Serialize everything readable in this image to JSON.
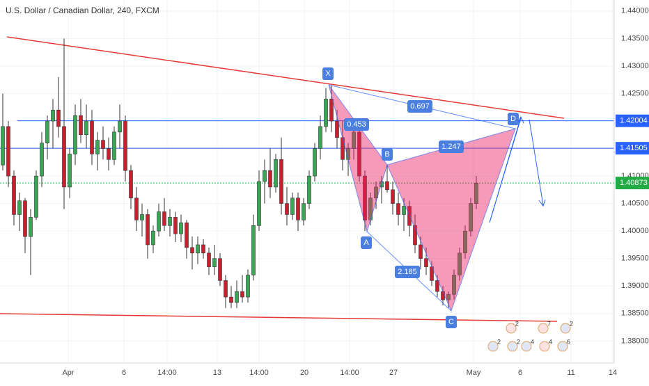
{
  "chart_data": {
    "type": "candlestick",
    "title": "U.S. Dollar / Canadian Dollar, 240, FXCM",
    "x_labels": [
      "Apr",
      "6",
      "14:00",
      "13",
      "14:00",
      "20",
      "14:00",
      "27",
      "May",
      "6",
      "11",
      "14"
    ],
    "ylim": [
      1.376,
      1.442
    ],
    "yticks": [
      {
        "value": 1.38,
        "label": "1.38000"
      },
      {
        "value": 1.385,
        "label": "1.38500"
      },
      {
        "value": 1.39,
        "label": "1.39000"
      },
      {
        "value": 1.395,
        "label": "1.39500"
      },
      {
        "value": 1.4,
        "label": "1.40000"
      },
      {
        "value": 1.405,
        "label": "1.40500"
      },
      {
        "value": 1.41,
        "label": "1.41000"
      },
      {
        "value": 1.415,
        "label": "1.41500"
      },
      {
        "value": 1.42,
        "label": "1.42000"
      },
      {
        "value": 1.425,
        "label": "1.42500"
      },
      {
        "value": 1.43,
        "label": "1.43000"
      },
      {
        "value": 1.435,
        "label": "1.43500"
      },
      {
        "value": 1.44,
        "label": "1.44000"
      }
    ],
    "price_lines": [
      {
        "value": 1.42004,
        "color": "#2962ff"
      },
      {
        "value": 1.41505,
        "color": "#2962ff"
      },
      {
        "value": 1.40873,
        "color": "#22ab45"
      }
    ],
    "up_color": "#3aa655",
    "down_color": "#c8202f",
    "pattern_points": [
      "X",
      "A",
      "B",
      "C",
      "D"
    ],
    "pattern_ratios": [
      "0.697",
      "0.453",
      "1.247",
      "2.185"
    ],
    "event_counts": [
      "2",
      "2",
      "2",
      "4",
      "4",
      "6",
      "2",
      "7"
    ],
    "ohlc": [
      [
        1.412,
        1.425,
        1.411,
        1.419
      ],
      [
        1.419,
        1.42,
        1.408,
        1.41
      ],
      [
        1.41,
        1.411,
        1.401,
        1.403
      ],
      [
        1.403,
        1.407,
        1.4,
        1.4055
      ],
      [
        1.4055,
        1.406,
        1.396,
        1.399
      ],
      [
        1.399,
        1.404,
        1.392,
        1.4025
      ],
      [
        1.4025,
        1.411,
        1.402,
        1.41
      ],
      [
        1.41,
        1.418,
        1.408,
        1.416
      ],
      [
        1.416,
        1.421,
        1.413,
        1.42
      ],
      [
        1.42,
        1.424,
        1.415,
        1.422
      ],
      [
        1.422,
        1.428,
        1.417,
        1.419
      ],
      [
        1.419,
        1.435,
        1.404,
        1.408
      ],
      [
        1.408,
        1.415,
        1.406,
        1.414
      ],
      [
        1.414,
        1.423,
        1.412,
        1.421
      ],
      [
        1.421,
        1.424,
        1.416,
        1.4175
      ],
      [
        1.4175,
        1.423,
        1.415,
        1.42
      ],
      [
        1.42,
        1.422,
        1.412,
        1.414
      ],
      [
        1.414,
        1.418,
        1.411,
        1.4165
      ],
      [
        1.4165,
        1.419,
        1.413,
        1.415
      ],
      [
        1.415,
        1.417,
        1.411,
        1.413
      ],
      [
        1.413,
        1.419,
        1.412,
        1.418
      ],
      [
        1.418,
        1.423,
        1.415,
        1.42
      ],
      [
        1.42,
        1.421,
        1.409,
        1.411
      ],
      [
        1.411,
        1.412,
        1.404,
        1.406
      ],
      [
        1.406,
        1.408,
        1.4,
        1.402
      ],
      [
        1.402,
        1.405,
        1.399,
        1.403
      ],
      [
        1.403,
        1.404,
        1.395,
        1.3975
      ],
      [
        1.3975,
        1.401,
        1.396,
        1.4
      ],
      [
        1.4,
        1.405,
        1.399,
        1.4035
      ],
      [
        1.4035,
        1.406,
        1.4,
        1.401
      ],
      [
        1.401,
        1.404,
        1.399,
        1.4025
      ],
      [
        1.4025,
        1.4035,
        1.398,
        1.3995
      ],
      [
        1.3995,
        1.403,
        1.398,
        1.4015
      ],
      [
        1.4015,
        1.402,
        1.395,
        1.397
      ],
      [
        1.397,
        1.399,
        1.393,
        1.396
      ],
      [
        1.396,
        1.399,
        1.394,
        1.3975
      ],
      [
        1.3975,
        1.3985,
        1.395,
        1.396
      ],
      [
        1.396,
        1.397,
        1.392,
        1.3935
      ],
      [
        1.3935,
        1.3975,
        1.392,
        1.395
      ],
      [
        1.395,
        1.396,
        1.39,
        1.391
      ],
      [
        1.391,
        1.392,
        1.386,
        1.388
      ],
      [
        1.388,
        1.39,
        1.386,
        1.387
      ],
      [
        1.387,
        1.391,
        1.386,
        1.389
      ],
      [
        1.389,
        1.392,
        1.387,
        1.388
      ],
      [
        1.388,
        1.393,
        1.387,
        1.392
      ],
      [
        1.392,
        1.403,
        1.391,
        1.401
      ],
      [
        1.401,
        1.411,
        1.4,
        1.409
      ],
      [
        1.409,
        1.413,
        1.405,
        1.411
      ],
      [
        1.411,
        1.415,
        1.406,
        1.408
      ],
      [
        1.408,
        1.414,
        1.407,
        1.413
      ],
      [
        1.413,
        1.417,
        1.403,
        1.405
      ],
      [
        1.405,
        1.408,
        1.401,
        1.403
      ],
      [
        1.403,
        1.407,
        1.402,
        1.406
      ],
      [
        1.406,
        1.407,
        1.4,
        1.402
      ],
      [
        1.402,
        1.406,
        1.401,
        1.405
      ],
      [
        1.405,
        1.411,
        1.404,
        1.41
      ],
      [
        1.41,
        1.416,
        1.409,
        1.415
      ],
      [
        1.415,
        1.421,
        1.413,
        1.419
      ],
      [
        1.419,
        1.426,
        1.418,
        1.424
      ],
      [
        1.424,
        1.4265,
        1.418,
        1.42
      ],
      [
        1.42,
        1.422,
        1.415,
        1.417
      ],
      [
        1.417,
        1.42,
        1.411,
        1.413
      ],
      [
        1.413,
        1.416,
        1.41,
        1.415
      ],
      [
        1.415,
        1.4195,
        1.413,
        1.418
      ],
      [
        1.418,
        1.419,
        1.409,
        1.41
      ],
      [
        1.41,
        1.411,
        1.4,
        1.402
      ],
      [
        1.402,
        1.407,
        1.401,
        1.406
      ],
      [
        1.406,
        1.409,
        1.404,
        1.408
      ],
      [
        1.408,
        1.41,
        1.405,
        1.409
      ],
      [
        1.409,
        1.412,
        1.407,
        1.4075
      ],
      [
        1.4075,
        1.409,
        1.403,
        1.405
      ],
      [
        1.405,
        1.407,
        1.401,
        1.403
      ],
      [
        1.403,
        1.406,
        1.4,
        1.4045
      ],
      [
        1.4045,
        1.4055,
        1.399,
        1.401
      ],
      [
        1.401,
        1.403,
        1.396,
        1.3975
      ],
      [
        1.3975,
        1.399,
        1.393,
        1.395
      ],
      [
        1.395,
        1.397,
        1.392,
        1.3935
      ],
      [
        1.3935,
        1.3945,
        1.39,
        1.391
      ],
      [
        1.391,
        1.392,
        1.388,
        1.389
      ],
      [
        1.389,
        1.39,
        1.3865,
        1.3875
      ],
      [
        1.3875,
        1.389,
        1.386,
        1.3885
      ],
      [
        1.3885,
        1.393,
        1.3875,
        1.392
      ],
      [
        1.392,
        1.397,
        1.391,
        1.396
      ],
      [
        1.396,
        1.401,
        1.395,
        1.4
      ],
      [
        1.4,
        1.406,
        1.399,
        1.405
      ],
      [
        1.405,
        1.41,
        1.404,
        1.4087
      ]
    ]
  }
}
